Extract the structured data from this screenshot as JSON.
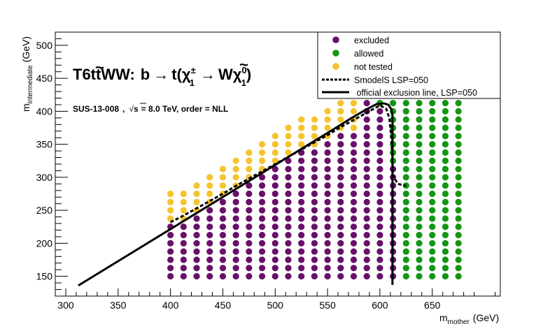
{
  "chart_data": {
    "type": "scatter",
    "title": "T6ttWW: b̃ → t(χ±1 → Wχ̃01)",
    "title_parts": {
      "model": "T6ttWW:",
      "sbottom": "b",
      "arrow1": "→",
      "top": "t(",
      "chargino": "χ",
      "chargino_sup": "±",
      "chargino_sub": "1",
      "arrow2": "→",
      "w": "W",
      "neutralino": "χ",
      "neutralino_sup": "0",
      "neutralino_sub": "1",
      "close": ")"
    },
    "subtitle": {
      "analysis": "SUS-13-008",
      "sep": ",",
      "sqrt": "s",
      "energy": "=  8.0 TeV, order =  NLL"
    },
    "xlabel": {
      "main": "m",
      "sub": "mother",
      "unit": "(GeV)"
    },
    "ylabel": {
      "main": "m",
      "sub": "intermediate",
      "unit": "(GeV)"
    },
    "xlim": [
      290,
      715
    ],
    "ylim": [
      120,
      520
    ],
    "xticks": [
      300,
      350,
      400,
      450,
      500,
      550,
      600,
      650
    ],
    "yticks": [
      150,
      200,
      250,
      300,
      350,
      400,
      450,
      500
    ],
    "legend": {
      "placement": "top-right",
      "entries": [
        {
          "label": "excluded",
          "kind": "marker",
          "color": "#6a0f6a"
        },
        {
          "label": "allowed",
          "kind": "marker",
          "color": "#149614"
        },
        {
          "label": "not tested",
          "kind": "marker",
          "color": "#f5c32c"
        },
        {
          "label": "SmodelS LSP=050",
          "kind": "dashed-line",
          "color": "#000000"
        },
        {
          "label": " official exclusion line, LSP=050",
          "kind": "solid-line",
          "color": "#000000"
        }
      ]
    },
    "grid": {
      "x_start": 400,
      "x_end": 675,
      "x_step": 12.5,
      "y_start": 150,
      "y_step": 12.5,
      "y_max_start": 275,
      "y_max_slope": 0.9,
      "y_max_cap": 412.5,
      "allowed_from_x": 625,
      "transition": [
        {
          "x": 612.5,
          "allowed_from_y": 325,
          "excluded_below_y": 325
        },
        {
          "x": 600,
          "allowed_from_y": 412.5,
          "excluded_below_y": 412.5
        }
      ],
      "not_tested_band": 4
    },
    "series": [
      {
        "name": "SmodelS LSP=050",
        "style": "dashed",
        "x": [
          400,
          412.5,
          425,
          437.5,
          450,
          462.5,
          475,
          487.5,
          500,
          512.5,
          525,
          537.5,
          550,
          562.5,
          575,
          587.5,
          600,
          606,
          609,
          611,
          612.5,
          617,
          625
        ],
        "y": [
          232,
          242,
          253,
          264,
          275,
          287,
          298,
          309,
          320,
          331,
          342,
          353,
          364,
          376,
          387,
          398,
          409,
          404,
          390,
          360,
          303,
          290,
          287
        ]
      },
      {
        "name": " official exclusion line, LSP=050",
        "style": "solid",
        "x": [
          312,
          560,
          572,
          586,
          597,
          604,
          608,
          611,
          612,
          612,
          612
        ],
        "y": [
          136,
          377,
          389,
          402,
          411,
          412,
          410,
          403,
          393,
          300,
          137
        ]
      }
    ],
    "colors": {
      "excluded": "#6a0f6a",
      "allowed": "#149614",
      "not_tested": "#f5c32c"
    }
  }
}
